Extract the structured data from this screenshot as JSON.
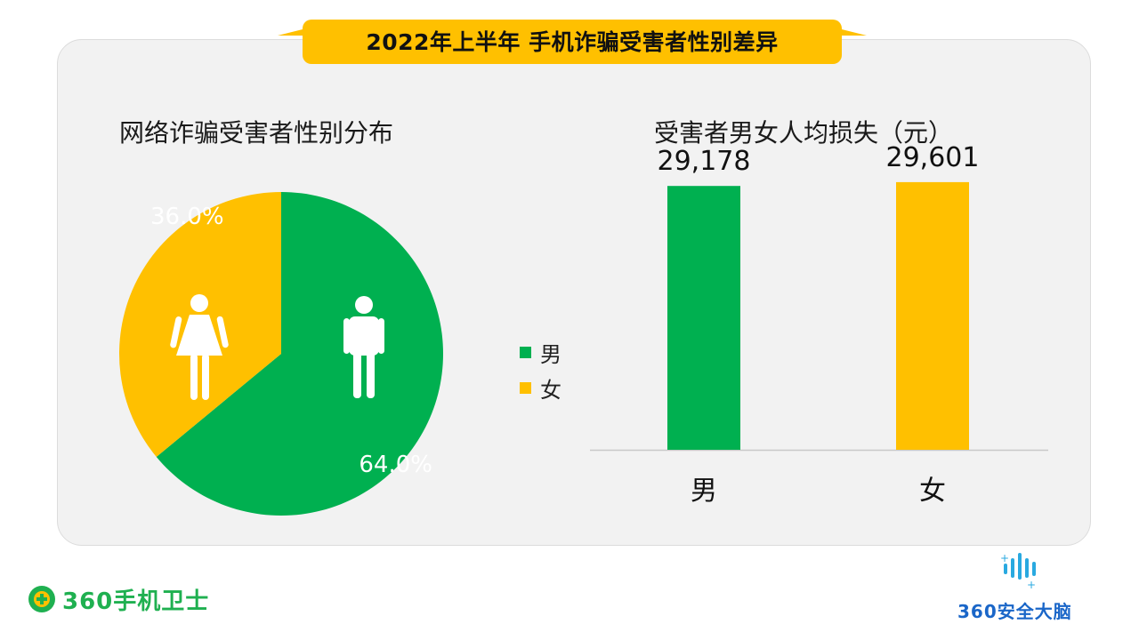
{
  "header": {
    "title": "2022年上半年 手机诈骗受害者性别差异"
  },
  "colors": {
    "male": "#00b050",
    "female": "#ffc000",
    "title_bg": "#ffc000",
    "panel_bg": "#f2f2f2"
  },
  "chart_data": [
    {
      "type": "pie",
      "title": "网络诈骗受害者性别分布",
      "slices": [
        {
          "name": "男",
          "value": 64.0,
          "label": "64.0%",
          "color": "#00b050",
          "icon": "male-person-icon"
        },
        {
          "name": "女",
          "value": 36.0,
          "label": "36.0%",
          "color": "#ffc000",
          "icon": "female-person-icon"
        }
      ],
      "legend": {
        "position": "right",
        "items": [
          "男",
          "女"
        ]
      }
    },
    {
      "type": "bar",
      "title": "受害者男女人均损失（元）",
      "categories": [
        "男",
        "女"
      ],
      "values": [
        29178,
        29601
      ],
      "value_labels": [
        "29,178",
        "29,601"
      ],
      "colors": [
        "#00b050",
        "#ffc000"
      ],
      "ylim": [
        0,
        35000
      ]
    }
  ],
  "branding": {
    "left_logo": {
      "text": "360手机卫士",
      "icon": "plus-circle-icon"
    },
    "right_logo": {
      "text": "360安全大脑",
      "icon": "signal-bars-icon"
    }
  }
}
